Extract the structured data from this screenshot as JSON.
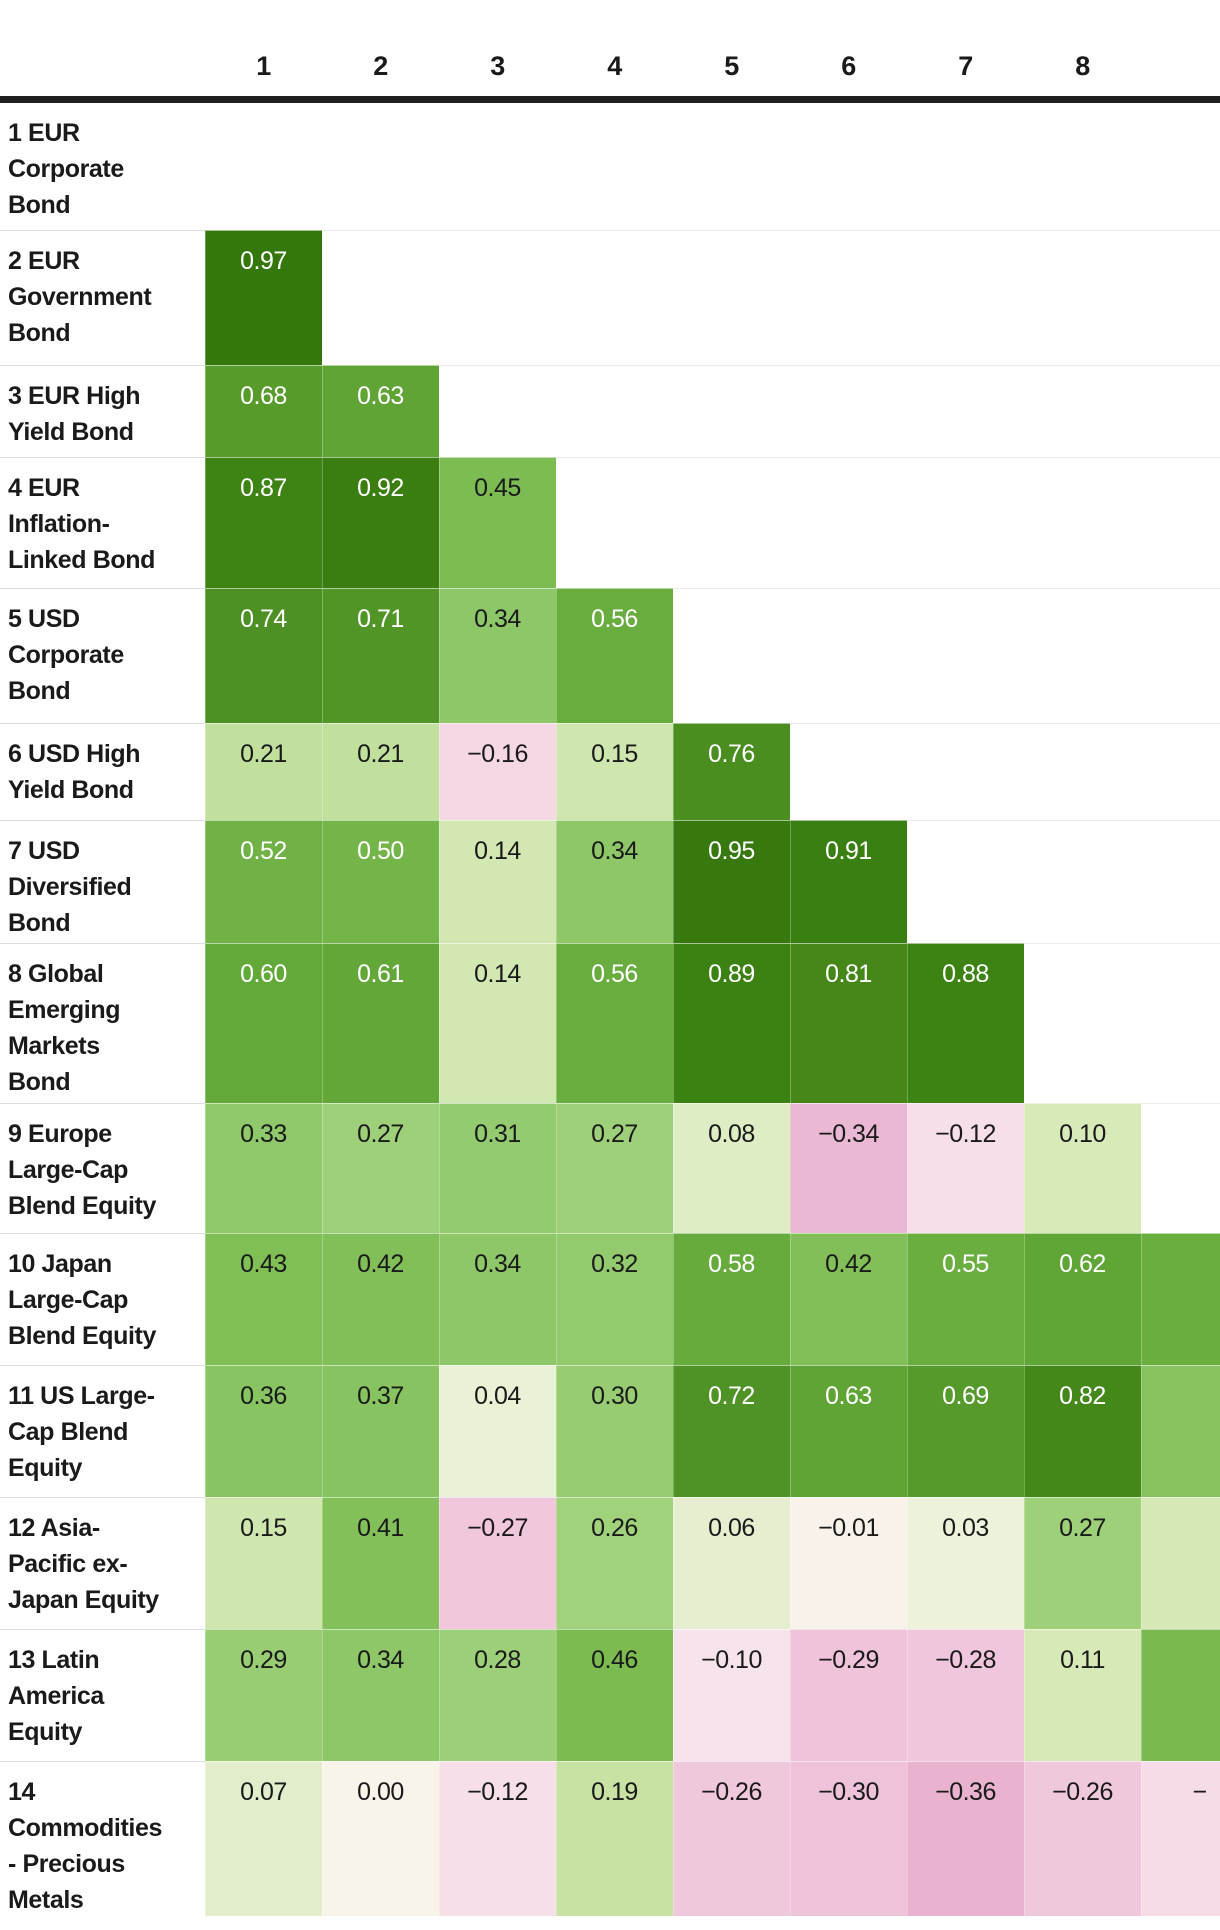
{
  "chart_data": {
    "type": "heatmap",
    "subtype": "correlation-matrix-lower-triangular",
    "title": "",
    "columns": [
      "1",
      "2",
      "3",
      "4",
      "5",
      "6",
      "7",
      "8"
    ],
    "rows": [
      {
        "index": 1,
        "label": "1 EUR Corporate Bond",
        "label_lines": [
          "1 EUR",
          "Corporate",
          "Bond"
        ],
        "values": []
      },
      {
        "index": 2,
        "label": "2 EUR Government Bond",
        "label_lines": [
          "2 EUR",
          "Government",
          "Bond"
        ],
        "values": [
          0.97
        ]
      },
      {
        "index": 3,
        "label": "3 EUR High Yield Bond",
        "label_lines": [
          "3 EUR High",
          "Yield Bond"
        ],
        "values": [
          0.68,
          0.63
        ]
      },
      {
        "index": 4,
        "label": "4 EUR Inflation-Linked Bond",
        "label_lines": [
          "4 EUR",
          "Inflation-",
          "Linked Bond"
        ],
        "values": [
          0.87,
          0.92,
          0.45
        ]
      },
      {
        "index": 5,
        "label": "5 USD Corporate Bond",
        "label_lines": [
          "5 USD",
          "Corporate",
          "Bond"
        ],
        "values": [
          0.74,
          0.71,
          0.34,
          0.56
        ]
      },
      {
        "index": 6,
        "label": "6 USD High Yield Bond",
        "label_lines": [
          "6 USD High",
          "Yield Bond"
        ],
        "values": [
          0.21,
          0.21,
          -0.16,
          0.15,
          0.76
        ]
      },
      {
        "index": 7,
        "label": "7 USD Diversified Bond",
        "label_lines": [
          "7 USD",
          "Diversified",
          "Bond"
        ],
        "values": [
          0.52,
          0.5,
          0.14,
          0.34,
          0.95,
          0.91
        ]
      },
      {
        "index": 8,
        "label": "8 Global Emerging Markets Bond",
        "label_lines": [
          "8 Global",
          "Emerging",
          "Markets",
          "Bond"
        ],
        "values": [
          0.6,
          0.61,
          0.14,
          0.56,
          0.89,
          0.81,
          0.88
        ]
      },
      {
        "index": 9,
        "label": "9 Europe Large-Cap Blend Equity",
        "label_lines": [
          "9 Europe",
          "Large-Cap",
          "Blend Equity"
        ],
        "values": [
          0.33,
          0.27,
          0.31,
          0.27,
          0.08,
          -0.34,
          -0.12,
          0.1
        ]
      },
      {
        "index": 10,
        "label": "10 Japan Large-Cap Blend Equity",
        "label_lines": [
          "10 Japan",
          "Large-Cap",
          "Blend Equity"
        ],
        "values": [
          0.43,
          0.42,
          0.34,
          0.32,
          0.58,
          0.42,
          0.55,
          0.62
        ],
        "partial_col9": {
          "color_value": 0.55,
          "visible_text": ""
        }
      },
      {
        "index": 11,
        "label": "11 US Large-Cap Blend Equity",
        "label_lines": [
          "11 US Large-",
          "Cap Blend",
          "Equity"
        ],
        "values": [
          0.36,
          0.37,
          0.04,
          0.3,
          0.72,
          0.63,
          0.69,
          0.82
        ],
        "partial_col9": {
          "color_value": 0.38,
          "visible_text": ""
        }
      },
      {
        "index": 12,
        "label": "12 Asia-Pacific ex-Japan Equity",
        "label_lines": [
          "12 Asia-",
          "Pacific ex-",
          "Japan Equity"
        ],
        "values": [
          0.15,
          0.41,
          -0.27,
          0.26,
          0.06,
          -0.01,
          0.03,
          0.27
        ],
        "partial_col9": {
          "color_value": 0.12,
          "visible_text": ""
        }
      },
      {
        "index": 13,
        "label": "13 Latin America Equity",
        "label_lines": [
          "13 Latin",
          "America",
          "Equity"
        ],
        "values": [
          0.29,
          0.34,
          0.28,
          0.46,
          -0.1,
          -0.29,
          -0.28,
          0.11
        ],
        "partial_col9": {
          "color_value": 0.47,
          "visible_text": ""
        }
      },
      {
        "index": 14,
        "label": "14 Commodities - Precious Metals",
        "label_lines": [
          "14",
          "Commodities",
          "- Precious",
          "Metals"
        ],
        "values": [
          0.07,
          0.0,
          -0.12,
          0.19,
          -0.26,
          -0.3,
          -0.36,
          -0.26
        ],
        "partial_col9": {
          "color_value": -0.14,
          "visible_text": "−"
        }
      }
    ],
    "colorscale": {
      "stops": [
        [
          1.0,
          "#2f730a"
        ],
        [
          0.95,
          "#37790f"
        ],
        [
          0.88,
          "#3d8314"
        ],
        [
          0.8,
          "#46891a"
        ],
        [
          0.72,
          "#4f9226"
        ],
        [
          0.68,
          "#579c2b"
        ],
        [
          0.6,
          "#63a939"
        ],
        [
          0.55,
          "#6bae40"
        ],
        [
          0.5,
          "#74b54a"
        ],
        [
          0.45,
          "#7dbc52"
        ],
        [
          0.42,
          "#82bf58"
        ],
        [
          0.36,
          "#89c463"
        ],
        [
          0.33,
          "#90c96b"
        ],
        [
          0.3,
          "#97cc72"
        ],
        [
          0.26,
          "#a0d17b"
        ],
        [
          0.21,
          "#c2e09d"
        ],
        [
          0.15,
          "#d0e6af"
        ],
        [
          0.1,
          "#d9eab9"
        ],
        [
          0.07,
          "#e2eecb"
        ],
        [
          0.03,
          "#edf3da"
        ],
        [
          0.0,
          "#f9f4e9"
        ],
        [
          -0.05,
          "#f8ebee"
        ],
        [
          -0.1,
          "#f7e3eb"
        ],
        [
          -0.16,
          "#f5d8e4"
        ],
        [
          -0.26,
          "#f0c8dc"
        ],
        [
          -0.3,
          "#eec3d9"
        ],
        [
          -0.36,
          "#e9b3d0"
        ],
        [
          -0.4,
          "#e7aecd"
        ]
      ],
      "positive_color_family": "green",
      "negative_color_family": "pink",
      "zero_color": "#f9f4e9"
    },
    "value_text_colors": {
      "dark": "#1a1a1a",
      "light": "#ffffff",
      "light_text_threshold": 0.5
    },
    "header_rule_color": "#1f1f1f",
    "minus_glyph": "−",
    "layout": {
      "legend": false,
      "gridlines": false,
      "ninth_column_clipped_by_viewport": true
    }
  }
}
